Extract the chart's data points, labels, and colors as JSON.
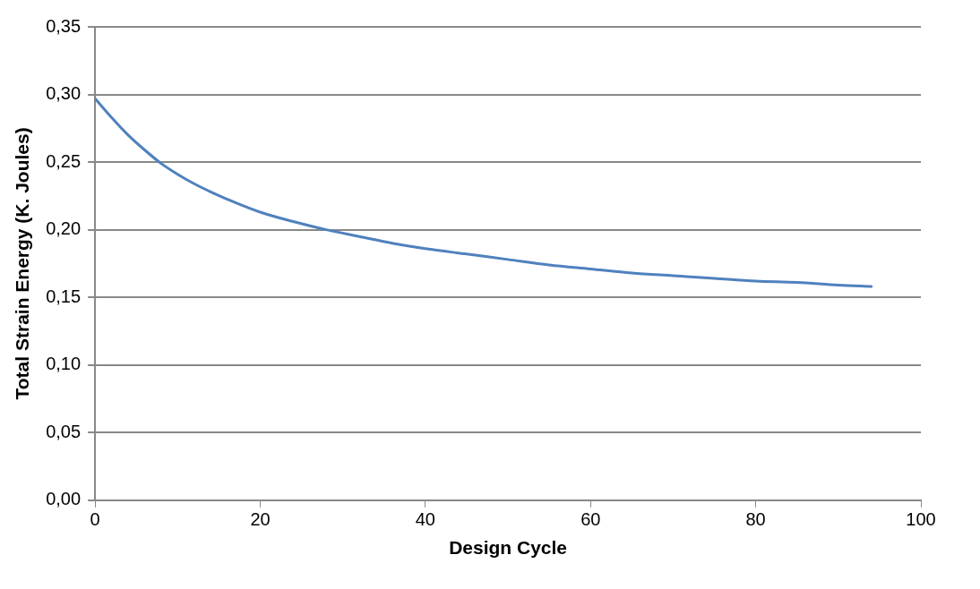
{
  "chart_data": {
    "type": "line",
    "xlabel": "Design Cycle",
    "ylabel": "Total Strain Energy (K. Joules)",
    "x": [
      0,
      2,
      4,
      6,
      8,
      10,
      12,
      14,
      17,
      20,
      24,
      28,
      32,
      36,
      40,
      45,
      50,
      55,
      60,
      65,
      70,
      75,
      80,
      85,
      90,
      94
    ],
    "series": [
      {
        "color": "#4f81bd",
        "values": [
          0.297,
          0.283,
          0.27,
          0.259,
          0.249,
          0.241,
          0.234,
          0.228,
          0.22,
          0.213,
          0.206,
          0.2,
          0.195,
          0.19,
          0.186,
          0.182,
          0.178,
          0.174,
          0.171,
          0.168,
          0.166,
          0.164,
          0.162,
          0.161,
          0.159,
          0.158
        ]
      }
    ],
    "xlim": [
      0,
      100
    ],
    "xticks": [
      0,
      20,
      40,
      60,
      80,
      100
    ],
    "ylim": [
      0,
      0.35
    ],
    "yticks": [
      {
        "value": 0,
        "label": "0,00"
      },
      {
        "value": 0.05,
        "label": "0,05"
      },
      {
        "value": 0.1,
        "label": "0,10"
      },
      {
        "value": 0.15,
        "label": "0,15"
      },
      {
        "value": 0.2,
        "label": "0,20"
      },
      {
        "value": 0.25,
        "label": "0,25"
      },
      {
        "value": 0.3,
        "label": "0,30"
      },
      {
        "value": 0.35,
        "label": "0,35"
      }
    ],
    "grid": "y",
    "legend": false,
    "marker": "none",
    "line_style": "solid"
  }
}
